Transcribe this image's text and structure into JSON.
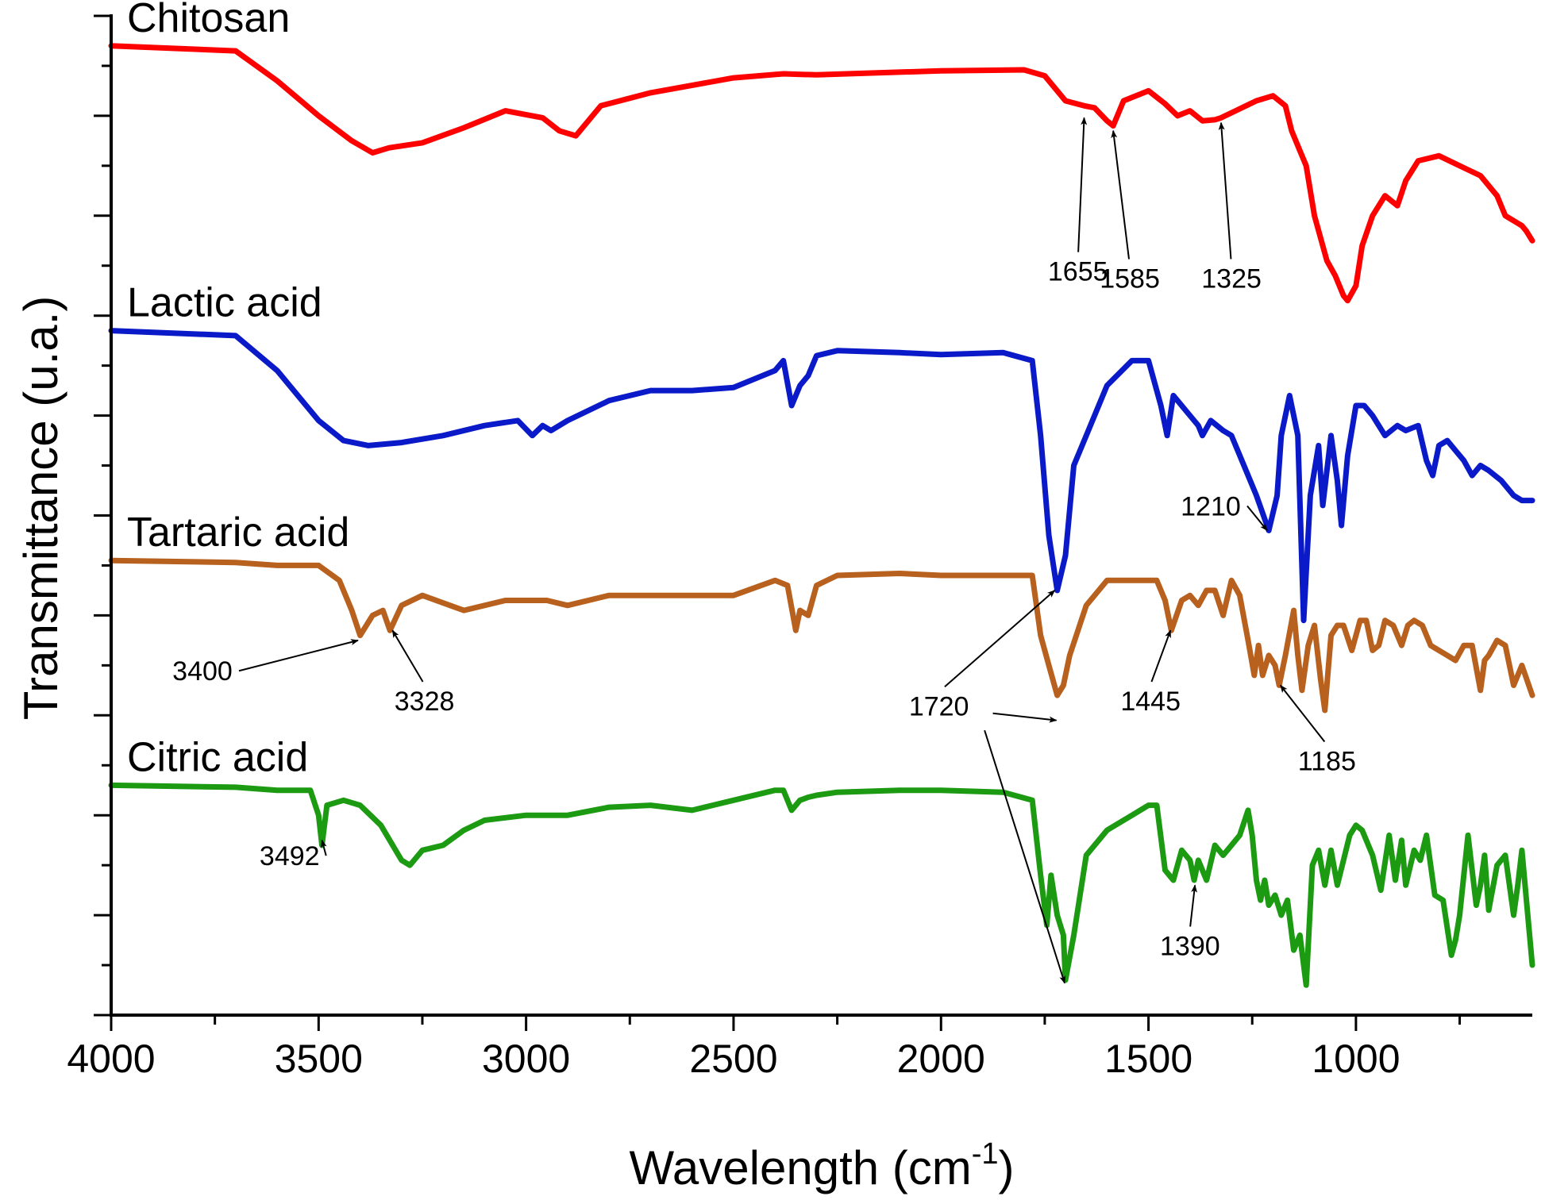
{
  "chart_data": {
    "type": "line",
    "title": "",
    "xlabel": "Wavelength (cm",
    "xlabel_sup": "-1",
    "xlabel_suffix": ")",
    "ylabel": "Transmittance (u.a.)",
    "xlim": [
      4000,
      575
    ],
    "x_ticks": [
      4000,
      3500,
      3000,
      2500,
      2000,
      1500,
      1000
    ],
    "x_tick_labels": [
      "4000",
      "3500",
      "3000",
      "2500",
      "2000",
      "1500",
      "1000"
    ],
    "ylim": [
      0,
      100
    ],
    "y_tick_count": 20,
    "legend": "inline labels",
    "series": [
      {
        "name": "Chitosan",
        "color": "#ff0000",
        "x": [
          4000,
          3700,
          3600,
          3500,
          3420,
          3370,
          3330,
          3250,
          3150,
          3050,
          2960,
          2920,
          2880,
          2820,
          2700,
          2500,
          2380,
          2300,
          2000,
          1800,
          1750,
          1700,
          1655,
          1630,
          1600,
          1585,
          1560,
          1500,
          1460,
          1430,
          1400,
          1370,
          1340,
          1325,
          1290,
          1240,
          1200,
          1170,
          1155,
          1140,
          1120,
          1100,
          1070,
          1050,
          1030,
          1020,
          1000,
          985,
          960,
          930,
          900,
          880,
          850,
          800,
          750,
          700,
          660,
          640,
          620,
          600,
          590,
          575
        ],
        "y": [
          97.0,
          96.5,
          93.5,
          90.0,
          87.5,
          86.3,
          86.8,
          87.3,
          88.8,
          90.5,
          89.8,
          88.5,
          88.0,
          91.0,
          92.3,
          93.8,
          94.2,
          94.1,
          94.5,
          94.6,
          94.0,
          91.5,
          91.0,
          90.8,
          89.5,
          89.0,
          91.5,
          92.5,
          91.2,
          90.0,
          90.5,
          89.5,
          89.6,
          89.8,
          90.5,
          91.5,
          92.0,
          91.0,
          88.5,
          87.0,
          85.0,
          80.0,
          75.5,
          74.0,
          72.0,
          71.5,
          73.0,
          77.0,
          80.0,
          82.0,
          81.0,
          83.5,
          85.5,
          86.0,
          85.0,
          84.0,
          82.0,
          80.0,
          79.5,
          79.0,
          78.5,
          77.5
        ]
      },
      {
        "name": "Lactic acid",
        "color": "#0a1ac8",
        "x": [
          4000,
          3700,
          3600,
          3500,
          3440,
          3380,
          3300,
          3200,
          3100,
          3020,
          2985,
          2960,
          2940,
          2900,
          2800,
          2700,
          2600,
          2500,
          2400,
          2380,
          2360,
          2340,
          2320,
          2300,
          2250,
          2100,
          2000,
          1850,
          1780,
          1760,
          1740,
          1720,
          1700,
          1680,
          1650,
          1600,
          1540,
          1500,
          1470,
          1455,
          1440,
          1410,
          1380,
          1370,
          1350,
          1320,
          1300,
          1270,
          1240,
          1210,
          1190,
          1180,
          1160,
          1140,
          1126,
          1110,
          1090,
          1080,
          1060,
          1045,
          1035,
          1020,
          1000,
          980,
          960,
          930,
          900,
          880,
          850,
          830,
          815,
          800,
          780,
          760,
          740,
          720,
          700,
          680,
          650,
          620,
          600,
          575
        ],
        "y": [
          68.5,
          68.0,
          64.5,
          59.5,
          57.5,
          57.0,
          57.3,
          58.0,
          59.0,
          59.5,
          58.0,
          59.0,
          58.5,
          59.5,
          61.5,
          62.5,
          62.5,
          62.8,
          64.5,
          65.5,
          61.0,
          63.0,
          64.0,
          66.0,
          66.5,
          66.3,
          66.1,
          66.3,
          65.5,
          58.0,
          48.0,
          42.5,
          46.0,
          55.0,
          58.0,
          63.0,
          65.5,
          65.5,
          61.0,
          58.0,
          62.0,
          60.5,
          59.0,
          58.0,
          59.5,
          58.5,
          58.0,
          55.0,
          52.0,
          48.5,
          52.0,
          58.0,
          62.0,
          58.0,
          39.5,
          52.0,
          57.0,
          51.0,
          58.0,
          53.5,
          49.0,
          56.0,
          61.0,
          61.0,
          60.0,
          58.0,
          59.0,
          58.5,
          59.0,
          55.5,
          54.0,
          57.0,
          57.5,
          56.5,
          55.5,
          54.0,
          55.0,
          54.5,
          53.5,
          52.0,
          51.5,
          51.5
        ]
      },
      {
        "name": "Tartaric acid",
        "color": "#b8601e",
        "x": [
          4000,
          3700,
          3600,
          3500,
          3450,
          3420,
          3400,
          3370,
          3345,
          3328,
          3300,
          3250,
          3150,
          3050,
          2950,
          2900,
          2800,
          2700,
          2500,
          2400,
          2370,
          2350,
          2340,
          2320,
          2300,
          2250,
          2100,
          2000,
          1850,
          1780,
          1760,
          1740,
          1720,
          1705,
          1690,
          1650,
          1600,
          1540,
          1480,
          1460,
          1445,
          1420,
          1400,
          1380,
          1360,
          1340,
          1320,
          1300,
          1280,
          1260,
          1245,
          1235,
          1225,
          1210,
          1195,
          1185,
          1170,
          1150,
          1140,
          1130,
          1115,
          1100,
          1085,
          1075,
          1060,
          1045,
          1030,
          1010,
          990,
          975,
          960,
          945,
          930,
          910,
          890,
          875,
          860,
          840,
          820,
          800,
          780,
          760,
          740,
          720,
          700,
          690,
          680,
          660,
          640,
          620,
          600,
          575
        ],
        "y": [
          45.5,
          45.3,
          45.0,
          45.0,
          43.5,
          40.5,
          38.0,
          40.0,
          40.5,
          38.5,
          41.0,
          42.0,
          40.5,
          41.5,
          41.5,
          41.0,
          42.0,
          42.0,
          42.0,
          43.5,
          43.0,
          38.5,
          40.5,
          40.0,
          43.0,
          44.0,
          44.2,
          44.0,
          44.0,
          44.0,
          38.0,
          35.0,
          32.0,
          33.0,
          36.0,
          41.0,
          43.5,
          43.5,
          43.5,
          41.5,
          38.5,
          41.5,
          42.0,
          41.0,
          42.5,
          42.5,
          40.0,
          43.5,
          42.0,
          37.5,
          34.0,
          37.0,
          34.0,
          36.0,
          35.0,
          33.0,
          36.0,
          40.5,
          36.0,
          32.5,
          37.0,
          39.0,
          33.5,
          30.5,
          38.0,
          39.0,
          39.0,
          36.5,
          39.5,
          39.5,
          36.5,
          37.0,
          39.5,
          39.0,
          37.0,
          39.0,
          39.5,
          39.0,
          37.0,
          36.5,
          36.0,
          35.5,
          37.0,
          37.0,
          32.5,
          35.5,
          36.0,
          37.5,
          37.0,
          33.0,
          35.0,
          32.0
        ]
      },
      {
        "name": "Citric acid",
        "color": "#1b9a12",
        "x": [
          4000,
          3700,
          3600,
          3520,
          3500,
          3492,
          3480,
          3440,
          3400,
          3350,
          3300,
          3280,
          3250,
          3200,
          3150,
          3100,
          3000,
          2900,
          2800,
          2700,
          2600,
          2500,
          2400,
          2380,
          2360,
          2340,
          2320,
          2300,
          2250,
          2100,
          2000,
          1850,
          1780,
          1760,
          1745,
          1735,
          1720,
          1705,
          1700,
          1680,
          1650,
          1600,
          1540,
          1500,
          1480,
          1460,
          1440,
          1420,
          1400,
          1390,
          1380,
          1360,
          1340,
          1320,
          1300,
          1280,
          1260,
          1250,
          1240,
          1230,
          1220,
          1210,
          1195,
          1180,
          1165,
          1150,
          1135,
          1120,
          1105,
          1090,
          1075,
          1060,
          1045,
          1030,
          1015,
          1000,
          985,
          960,
          940,
          920,
          905,
          890,
          880,
          860,
          845,
          830,
          810,
          790,
          770,
          760,
          750,
          730,
          710,
          700,
          690,
          680,
          660,
          640,
          620,
          610,
          600,
          575
        ],
        "y": [
          23.0,
          22.8,
          22.5,
          22.5,
          20.0,
          17.0,
          21.0,
          21.5,
          21.0,
          19.0,
          15.5,
          15.0,
          16.5,
          17.0,
          18.5,
          19.5,
          20.0,
          20.0,
          20.8,
          21.0,
          20.5,
          21.5,
          22.5,
          22.5,
          20.5,
          21.5,
          21.8,
          22.0,
          22.3,
          22.5,
          22.5,
          22.3,
          21.5,
          14.0,
          9.0,
          14.0,
          10.0,
          8.0,
          3.5,
          8.0,
          16.0,
          18.5,
          20.0,
          21.0,
          21.0,
          14.5,
          13.5,
          16.5,
          15.5,
          13.5,
          15.5,
          13.5,
          17.0,
          16.0,
          17.0,
          18.0,
          20.5,
          18.0,
          13.5,
          11.5,
          13.5,
          11.0,
          12.0,
          10.0,
          11.5,
          6.5,
          8.0,
          3.0,
          15.0,
          16.5,
          13.0,
          16.5,
          13.0,
          15.5,
          18.0,
          19.0,
          18.5,
          16.0,
          12.5,
          18.0,
          13.5,
          17.5,
          13.0,
          16.5,
          15.5,
          18.0,
          12.0,
          11.5,
          6.0,
          7.5,
          10.0,
          18.0,
          11.0,
          13.0,
          16.0,
          10.5,
          15.0,
          16.0,
          10.0,
          13.0,
          16.5,
          5.0
        ]
      }
    ],
    "annotations": [
      {
        "label": "1655",
        "text_x": 1670,
        "text_y": 73.5,
        "arrow_x": 1655,
        "arrow_y": 89.8
      },
      {
        "label": "1585",
        "text_x": 1545,
        "text_y": 72.8,
        "arrow_x": 1585,
        "arrow_y": 88.5
      },
      {
        "label": "1325",
        "text_x": 1300,
        "text_y": 72.8,
        "arrow_x": 1325,
        "arrow_y": 89.3
      },
      {
        "label": "1210",
        "text_x": 1350,
        "text_y": 50.0,
        "arrow_x": 1214,
        "arrow_y": 48.5
      },
      {
        "label": "3400",
        "text_x": 3780,
        "text_y": 33.5,
        "arrow_x": 3405,
        "arrow_y": 37.5
      },
      {
        "label": "3328",
        "text_x": 3245,
        "text_y": 30.5,
        "arrow_x": 3322,
        "arrow_y": 38.5
      },
      {
        "label": "1720",
        "text_x": 2005,
        "text_y": 30.0,
        "arrow_x": 1726,
        "arrow_y": 42.5
      },
      {
        "label": "1445",
        "text_x": 1495,
        "text_y": 30.5,
        "arrow_x": 1447,
        "arrow_y": 38.5
      },
      {
        "label": "1185",
        "text_x": 1070,
        "text_y": 24.5,
        "arrow_x": 1182,
        "arrow_y": 33.0
      },
      {
        "label": "3492",
        "text_x": 3570,
        "text_y": 15.0,
        "arrow_x": 3492,
        "arrow_y": 17.5
      },
      {
        "label": "1390",
        "text_x": 1400,
        "text_y": 6.0,
        "arrow_x": 1388,
        "arrow_y": 13.0
      }
    ],
    "extra_arrows": [
      {
        "from_x": 1875,
        "from_y": 30.2,
        "to_x": 1722,
        "to_y": 29.5
      },
      {
        "from_x": 1895,
        "from_y": 28.5,
        "to_x": 1702,
        "to_y": 3.2
      }
    ]
  }
}
